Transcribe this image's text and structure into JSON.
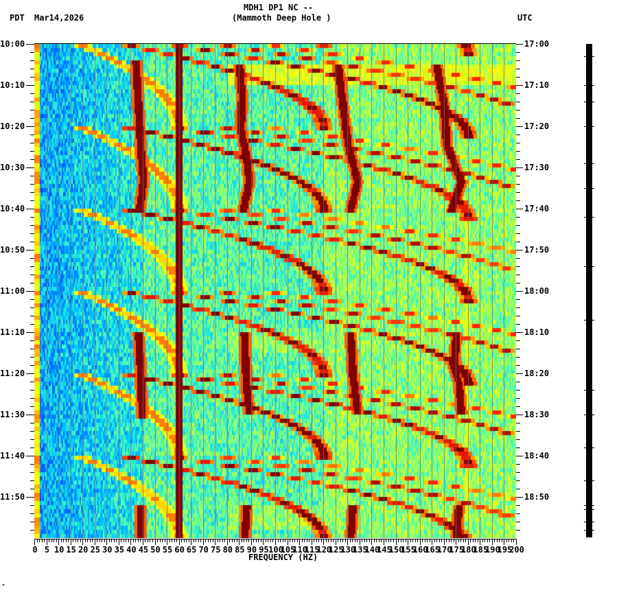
{
  "header": {
    "station_line": "MDH1 DP1 NC --",
    "station_name": "(Mammoth Deep Hole )",
    "left_timezone": "PDT",
    "date": "Mar14,2026",
    "right_timezone": "UTC"
  },
  "footer": {
    "corner_mark": "ᴹ"
  },
  "chart_data": {
    "type": "heatmap",
    "title": "MDH1 DP1 NC -- (Mammoth Deep Hole )",
    "subtitle": "Mar14,2026",
    "xlabel": "FREQUENCY (HZ)",
    "ylabel_left": "PDT",
    "ylabel_right": "UTC",
    "xlim": [
      0,
      200
    ],
    "x_ticks": [
      0,
      5,
      10,
      15,
      20,
      25,
      30,
      35,
      40,
      45,
      50,
      55,
      60,
      65,
      70,
      75,
      80,
      85,
      90,
      95,
      100,
      105,
      110,
      115,
      120,
      125,
      130,
      135,
      140,
      145,
      150,
      155,
      160,
      165,
      170,
      175,
      180,
      185,
      190,
      195,
      200
    ],
    "x_minor_step": 1,
    "y_ticks_left": [
      "10:00",
      "10:10",
      "10:20",
      "10:30",
      "10:40",
      "10:50",
      "11:00",
      "11:10",
      "11:20",
      "11:30",
      "11:40",
      "11:50"
    ],
    "y_ticks_right": [
      "17:00",
      "17:10",
      "17:20",
      "17:30",
      "17:40",
      "17:50",
      "18:00",
      "18:10",
      "18:20",
      "18:30",
      "18:40",
      "18:50"
    ],
    "y_range_minutes": [
      0,
      120
    ],
    "y_minor_step_minutes": 2,
    "grid": {
      "vertical_every_hz": 5
    },
    "colormap": [
      "#00008f",
      "#0050ff",
      "#00c8ff",
      "#50ffb0",
      "#c8ff30",
      "#ffff00",
      "#ff9000",
      "#ff2000",
      "#800000"
    ],
    "background_level": {
      "low_freq_region_hz": [
        0,
        45
      ],
      "low_freq_level": 0.22,
      "mid_level": 0.38,
      "high_level": 0.44,
      "bright_bands_minutes": [
        [
          5,
          10,
          0.6
        ],
        [
          70,
          75,
          0.5
        ],
        [
          112,
          118,
          0.5
        ]
      ]
    },
    "constant_lines": [
      {
        "name": "60 Hz power line",
        "freq_hz": 60,
        "width_hz": 1.6,
        "level": 1.0
      },
      {
        "name": "0 Hz edge",
        "freq_hz": 0.8,
        "width_hz": 1.6,
        "level": 0.75
      },
      {
        "name": "179 Hz weak line",
        "freq_hz": 179.5,
        "width_hz": 0.5,
        "level": 0.55,
        "minutes": [
          40,
          115
        ]
      }
    ],
    "vertical_wandering_lines": [
      {
        "minutes": [
          4,
          40
        ],
        "points": [
          [
            4,
            42
          ],
          [
            15,
            43
          ],
          [
            25,
            44
          ],
          [
            33,
            45
          ],
          [
            40,
            43.5
          ]
        ],
        "level": 1.0
      },
      {
        "minutes": [
          5,
          40
        ],
        "points": [
          [
            5,
            85
          ],
          [
            12,
            86
          ],
          [
            20,
            85.5
          ],
          [
            28,
            88
          ],
          [
            33,
            89
          ],
          [
            40,
            86.5
          ]
        ],
        "level": 1.0
      },
      {
        "minutes": [
          5,
          40
        ],
        "points": [
          [
            5,
            126
          ],
          [
            15,
            128
          ],
          [
            24,
            130
          ],
          [
            33,
            134
          ],
          [
            40,
            131
          ]
        ],
        "level": 1.0
      },
      {
        "minutes": [
          5,
          40
        ],
        "points": [
          [
            5,
            167
          ],
          [
            15,
            170
          ],
          [
            24,
            171
          ],
          [
            33,
            177
          ],
          [
            40,
            173
          ]
        ],
        "level": 1.0
      },
      {
        "minutes": [
          70,
          90
        ],
        "points": [
          [
            70,
            43
          ],
          [
            80,
            44
          ],
          [
            90,
            44.5
          ]
        ],
        "level": 1.0
      },
      {
        "minutes": [
          70,
          89
        ],
        "points": [
          [
            70,
            87
          ],
          [
            78,
            87.5
          ],
          [
            84,
            88
          ],
          [
            89,
            89
          ]
        ],
        "level": 1.0
      },
      {
        "minutes": [
          70,
          89
        ],
        "points": [
          [
            70,
            131
          ],
          [
            80,
            132
          ],
          [
            89,
            134
          ]
        ],
        "level": 1.0
      },
      {
        "minutes": [
          70,
          89
        ],
        "points": [
          [
            70,
            175
          ],
          [
            78,
            174
          ],
          [
            82,
            176
          ],
          [
            89,
            177
          ]
        ],
        "level": 1.0
      },
      {
        "minutes": [
          112,
          120
        ],
        "points": [
          [
            112,
            44
          ],
          [
            120,
            44
          ]
        ],
        "level": 1.0
      },
      {
        "minutes": [
          112,
          120
        ],
        "points": [
          [
            112,
            88
          ],
          [
            120,
            87
          ]
        ],
        "level": 1.0
      },
      {
        "minutes": [
          112,
          120
        ],
        "points": [
          [
            112,
            132
          ],
          [
            120,
            131
          ]
        ],
        "level": 1.0
      },
      {
        "minutes": [
          112,
          120
        ],
        "points": [
          [
            112,
            176
          ],
          [
            120,
            175
          ]
        ],
        "level": 1.0
      }
    ],
    "gliding_tones": {
      "description": "Repeating arc-shaped tones sweeping up in frequency; new sweep family roughly every 20 minutes",
      "cycle_start_minutes": [
        -20,
        0,
        20,
        40,
        60,
        80,
        100
      ],
      "harmonics": [
        {
          "start_hz": 20,
          "end_hz": 60,
          "duration_min": 20,
          "level": 0.62
        },
        {
          "start_hz": 40,
          "end_hz": 120,
          "duration_min": 20,
          "level": 0.85
        },
        {
          "start_hz": 60,
          "end_hz": 180,
          "duration_min": 22,
          "level": 0.85
        },
        {
          "start_hz": 80,
          "end_hz": 220,
          "duration_min": 24,
          "level": 0.8
        },
        {
          "start_hz": 100,
          "end_hz": 260,
          "duration_min": 26,
          "level": 0.72
        }
      ]
    }
  },
  "amplitude_bar": {
    "tick_minutes": [
      3,
      10,
      14,
      20,
      29,
      35,
      42,
      54,
      67,
      84,
      90,
      98,
      106,
      112,
      113,
      116,
      118
    ]
  }
}
